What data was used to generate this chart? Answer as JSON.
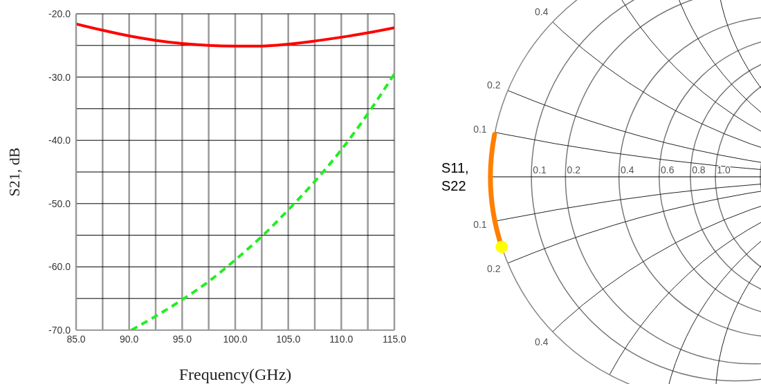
{
  "chart_data": [
    {
      "type": "line",
      "xlabel": "Frequency(GHz)",
      "ylabel": "S21, dB",
      "xlim": [
        85,
        115
      ],
      "ylim": [
        -70,
        -20
      ],
      "xticks": [
        {
          "value": 85,
          "label": "85.0"
        },
        {
          "value": 87.5,
          "label": null
        },
        {
          "value": 90,
          "label": "90.0"
        },
        {
          "value": 92.5,
          "label": null
        },
        {
          "value": 95,
          "label": "95.0"
        },
        {
          "value": 97.5,
          "label": null
        },
        {
          "value": 100,
          "label": "100.0"
        },
        {
          "value": 102.5,
          "label": null
        },
        {
          "value": 105,
          "label": "105.0"
        },
        {
          "value": 107.5,
          "label": null
        },
        {
          "value": 110,
          "label": "110.0"
        },
        {
          "value": 112.5,
          "label": null
        },
        {
          "value": 115,
          "label": "115.0"
        }
      ],
      "yticks": [
        {
          "value": -70,
          "label": "-70.0"
        },
        {
          "value": -65,
          "label": null
        },
        {
          "value": -60,
          "label": "-60.0"
        },
        {
          "value": -55,
          "label": null
        },
        {
          "value": -50,
          "label": "-50.0"
        },
        {
          "value": -45,
          "label": null
        },
        {
          "value": -40,
          "label": "-40.0"
        },
        {
          "value": -35,
          "label": null
        },
        {
          "value": -30,
          "label": "-30.0"
        },
        {
          "value": -25,
          "label": null
        },
        {
          "value": -20,
          "label": "-20.0"
        }
      ],
      "grid": true,
      "series": [
        {
          "color": "#ff0000",
          "line_style": "solid",
          "x": [
            85,
            87.5,
            90,
            92.5,
            95,
            97.5,
            100,
            102.5,
            105,
            107.5,
            110,
            112.5,
            115
          ],
          "values": [
            -21.6,
            -22.6,
            -23.5,
            -24.2,
            -24.7,
            -25.0,
            -25.1,
            -25.1,
            -24.8,
            -24.3,
            -23.7,
            -23.0,
            -22.2
          ]
        },
        {
          "color": "#22ee22",
          "line_style": "dashed",
          "x": [
            90.2,
            92.5,
            95,
            97.5,
            100,
            102.5,
            105,
            107.5,
            110,
            112.5,
            115
          ],
          "values": [
            -70,
            -67.8,
            -65.2,
            -62.3,
            -58.9,
            -55.2,
            -51.0,
            -46.5,
            -41.5,
            -35.8,
            -29.5
          ]
        }
      ]
    },
    {
      "type": "other",
      "ylabel": "S11, S22",
      "annotations": [
        "0.4",
        "0.2",
        "0.1",
        "0.1",
        "0.2",
        "0.4",
        "0.1",
        "0.2",
        "0.4",
        "0.6",
        "0.8",
        "1.0"
      ]
    }
  ]
}
